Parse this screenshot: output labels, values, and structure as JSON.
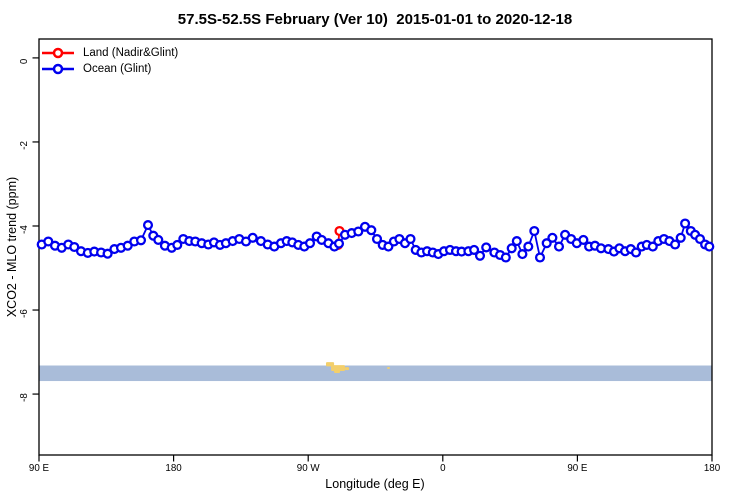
{
  "chart_data": {
    "type": "line",
    "title": "57.5S-52.5S February (Ver 10)  2015-01-01 to 2020-12-18",
    "xlabel": "Longitude (deg E)",
    "ylabel": "XCO2 - MLO trend (ppm)",
    "background": "#FFFFFF",
    "x_axis": {
      "tick_labels": [
        "90 E",
        "180",
        "90 W",
        "0",
        "90 E",
        "180"
      ],
      "tick_positions_deg": [
        0,
        90,
        180,
        270,
        360,
        450
      ],
      "range_deg": [
        0,
        450
      ]
    },
    "y_axis": {
      "tick_labels": [
        "0",
        "-2",
        "-4",
        "-6",
        "-8"
      ],
      "tick_values": [
        0,
        -2,
        -4,
        -6,
        -8
      ],
      "range_ppm": [
        0.45,
        -9.45
      ]
    },
    "legend_position": "top-left",
    "series": [
      {
        "name": "Land (Nadir&Glint)",
        "color": "#FF0000",
        "points": [
          [
            199.9,
            -4.45
          ],
          [
            200.9,
            -4.12
          ]
        ]
      },
      {
        "name": "Ocean (Glint)",
        "color": "#0000EE",
        "points": [
          [
            1.8,
            -4.44
          ],
          [
            6.2,
            -4.37
          ],
          [
            10.7,
            -4.47
          ],
          [
            15.2,
            -4.52
          ],
          [
            19.6,
            -4.44
          ],
          [
            23.6,
            -4.5
          ],
          [
            28.1,
            -4.6
          ],
          [
            32.6,
            -4.64
          ],
          [
            37.0,
            -4.61
          ],
          [
            41.5,
            -4.63
          ],
          [
            45.9,
            -4.66
          ],
          [
            50.4,
            -4.55
          ],
          [
            54.8,
            -4.52
          ],
          [
            59.3,
            -4.47
          ],
          [
            63.7,
            -4.37
          ],
          [
            68.2,
            -4.34
          ],
          [
            72.9,
            -3.98
          ],
          [
            76.4,
            -4.23
          ],
          [
            79.8,
            -4.33
          ],
          [
            84.2,
            -4.47
          ],
          [
            88.7,
            -4.52
          ],
          [
            92.5,
            -4.45
          ],
          [
            96.5,
            -4.31
          ],
          [
            100.5,
            -4.36
          ],
          [
            104.5,
            -4.37
          ],
          [
            108.8,
            -4.41
          ],
          [
            113.2,
            -4.44
          ],
          [
            117.0,
            -4.39
          ],
          [
            121.0,
            -4.45
          ],
          [
            125.0,
            -4.41
          ],
          [
            129.5,
            -4.36
          ],
          [
            133.9,
            -4.31
          ],
          [
            138.4,
            -4.37
          ],
          [
            142.9,
            -4.28
          ],
          [
            148.4,
            -4.36
          ],
          [
            152.9,
            -4.44
          ],
          [
            157.3,
            -4.49
          ],
          [
            161.8,
            -4.41
          ],
          [
            165.6,
            -4.36
          ],
          [
            169.4,
            -4.39
          ],
          [
            173.4,
            -4.45
          ],
          [
            177.4,
            -4.49
          ],
          [
            181.2,
            -4.41
          ],
          [
            185.7,
            -4.25
          ],
          [
            189.0,
            -4.33
          ],
          [
            193.5,
            -4.41
          ],
          [
            197.5,
            -4.49
          ],
          [
            200.6,
            -4.42
          ],
          [
            204.6,
            -4.21
          ],
          [
            209.1,
            -4.17
          ],
          [
            213.5,
            -4.13
          ],
          [
            218.0,
            -4.02
          ],
          [
            222.2,
            -4.1
          ],
          [
            226.0,
            -4.31
          ],
          [
            229.8,
            -4.45
          ],
          [
            233.6,
            -4.49
          ],
          [
            237.3,
            -4.37
          ],
          [
            241.0,
            -4.31
          ],
          [
            244.7,
            -4.41
          ],
          [
            248.4,
            -4.31
          ],
          [
            251.9,
            -4.57
          ],
          [
            255.7,
            -4.63
          ],
          [
            259.5,
            -4.6
          ],
          [
            263.3,
            -4.63
          ],
          [
            267.0,
            -4.67
          ],
          [
            270.8,
            -4.6
          ],
          [
            274.8,
            -4.57
          ],
          [
            278.8,
            -4.6
          ],
          [
            282.6,
            -4.61
          ],
          [
            287.1,
            -4.6
          ],
          [
            290.9,
            -4.57
          ],
          [
            294.9,
            -4.71
          ],
          [
            299.0,
            -4.51
          ],
          [
            304.5,
            -4.63
          ],
          [
            308.3,
            -4.69
          ],
          [
            312.1,
            -4.75
          ],
          [
            316.1,
            -4.53
          ],
          [
            319.5,
            -4.36
          ],
          [
            323.2,
            -4.67
          ],
          [
            327.2,
            -4.49
          ],
          [
            331.2,
            -4.12
          ],
          [
            335.0,
            -4.75
          ],
          [
            339.5,
            -4.41
          ],
          [
            343.3,
            -4.28
          ],
          [
            347.7,
            -4.49
          ],
          [
            351.8,
            -4.21
          ],
          [
            355.8,
            -4.31
          ],
          [
            359.6,
            -4.41
          ],
          [
            364.0,
            -4.33
          ],
          [
            367.8,
            -4.49
          ],
          [
            371.8,
            -4.47
          ],
          [
            375.8,
            -4.53
          ],
          [
            380.7,
            -4.55
          ],
          [
            384.5,
            -4.61
          ],
          [
            388.1,
            -4.53
          ],
          [
            391.9,
            -4.6
          ],
          [
            395.7,
            -4.55
          ],
          [
            399.2,
            -4.63
          ],
          [
            403.0,
            -4.49
          ],
          [
            406.4,
            -4.45
          ],
          [
            410.4,
            -4.49
          ],
          [
            414.1,
            -4.36
          ],
          [
            417.9,
            -4.31
          ],
          [
            421.5,
            -4.36
          ],
          [
            425.3,
            -4.44
          ],
          [
            429.1,
            -4.28
          ],
          [
            432.0,
            -3.94
          ],
          [
            435.8,
            -4.12
          ],
          [
            438.7,
            -4.21
          ],
          [
            442.0,
            -4.31
          ],
          [
            445.4,
            -4.44
          ],
          [
            448.2,
            -4.49
          ]
        ]
      }
    ],
    "map_strip": {
      "ocean_color": "#A9BCD9",
      "land_color": "#F3CF6B",
      "top_ppm": -7.32,
      "bottom_ppm": -7.69,
      "land_patches": [
        [
          191.9,
          197.3,
          -7.24,
          -7.34
        ],
        [
          195.3,
          204.6,
          -7.31,
          -7.45
        ],
        [
          197.3,
          201.3,
          -7.43,
          -7.5
        ],
        [
          204.6,
          207.3,
          -7.36,
          -7.43
        ],
        [
          232.7,
          234.7,
          -7.36,
          -7.4
        ]
      ]
    }
  }
}
